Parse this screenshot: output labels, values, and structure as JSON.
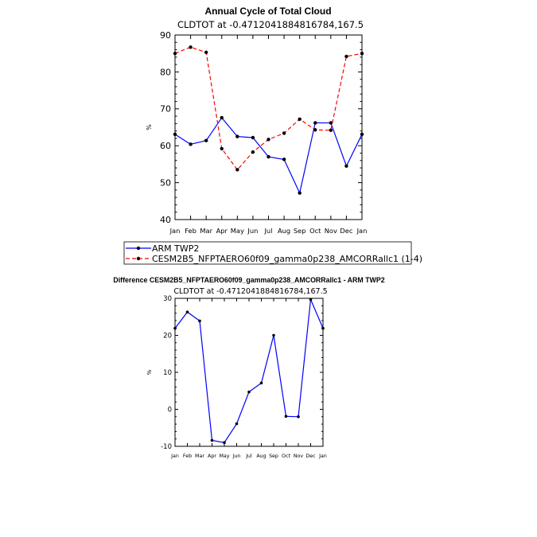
{
  "chart_data": [
    {
      "type": "line",
      "title": "Annual Cycle of Total Cloud",
      "subtitle": "CLDTOT at -0.4712041884816784,167.5",
      "ylabel": "%",
      "categories": [
        "Jan",
        "Feb",
        "Mar",
        "Apr",
        "May",
        "Jun",
        "Jul",
        "Aug",
        "Sep",
        "Oct",
        "Nov",
        "Dec",
        "Jan"
      ],
      "ylim": [
        40,
        90
      ],
      "yticks": [
        40,
        50,
        60,
        70,
        80,
        90
      ],
      "series": [
        {
          "name": "ARM TWP2",
          "color": "#0000ff",
          "dash": "solid",
          "values": [
            63.1,
            60.4,
            61.4,
            67.6,
            62.5,
            62.2,
            57.0,
            56.3,
            47.2,
            66.2,
            66.2,
            54.5,
            63.1
          ]
        },
        {
          "name": "CESM2B5_NFPTAERO60f09_gamma0p238_AMCORRallc1 (1-4)",
          "color": "#ff0000",
          "dash": "dashed",
          "values": [
            85.0,
            86.7,
            85.3,
            59.2,
            53.5,
            58.3,
            61.7,
            63.4,
            67.2,
            64.3,
            64.2,
            84.2,
            85.0
          ]
        }
      ],
      "legend_position": "bottom-left"
    },
    {
      "type": "line",
      "title": "Difference CESM2B5_NFPTAERO60f09_gamma0p238_AMCORRallc1 - ARM TWP2",
      "subtitle": "CLDTOT at -0.4712041884816784,167.5",
      "ylabel": "%",
      "categories": [
        "Jan",
        "Feb",
        "Mar",
        "Apr",
        "May",
        "Jun",
        "Jul",
        "Aug",
        "Sep",
        "Oct",
        "Nov",
        "Dec",
        "Jan"
      ],
      "ylim": [
        -10,
        30
      ],
      "yticks": [
        -10,
        0,
        10,
        20,
        30
      ],
      "series": [
        {
          "color": "#0000ff",
          "values": [
            21.9,
            26.3,
            23.9,
            -8.4,
            -9.0,
            -3.9,
            4.7,
            7.1,
            20.0,
            -1.9,
            -2.0,
            29.7,
            21.9
          ]
        }
      ]
    }
  ]
}
